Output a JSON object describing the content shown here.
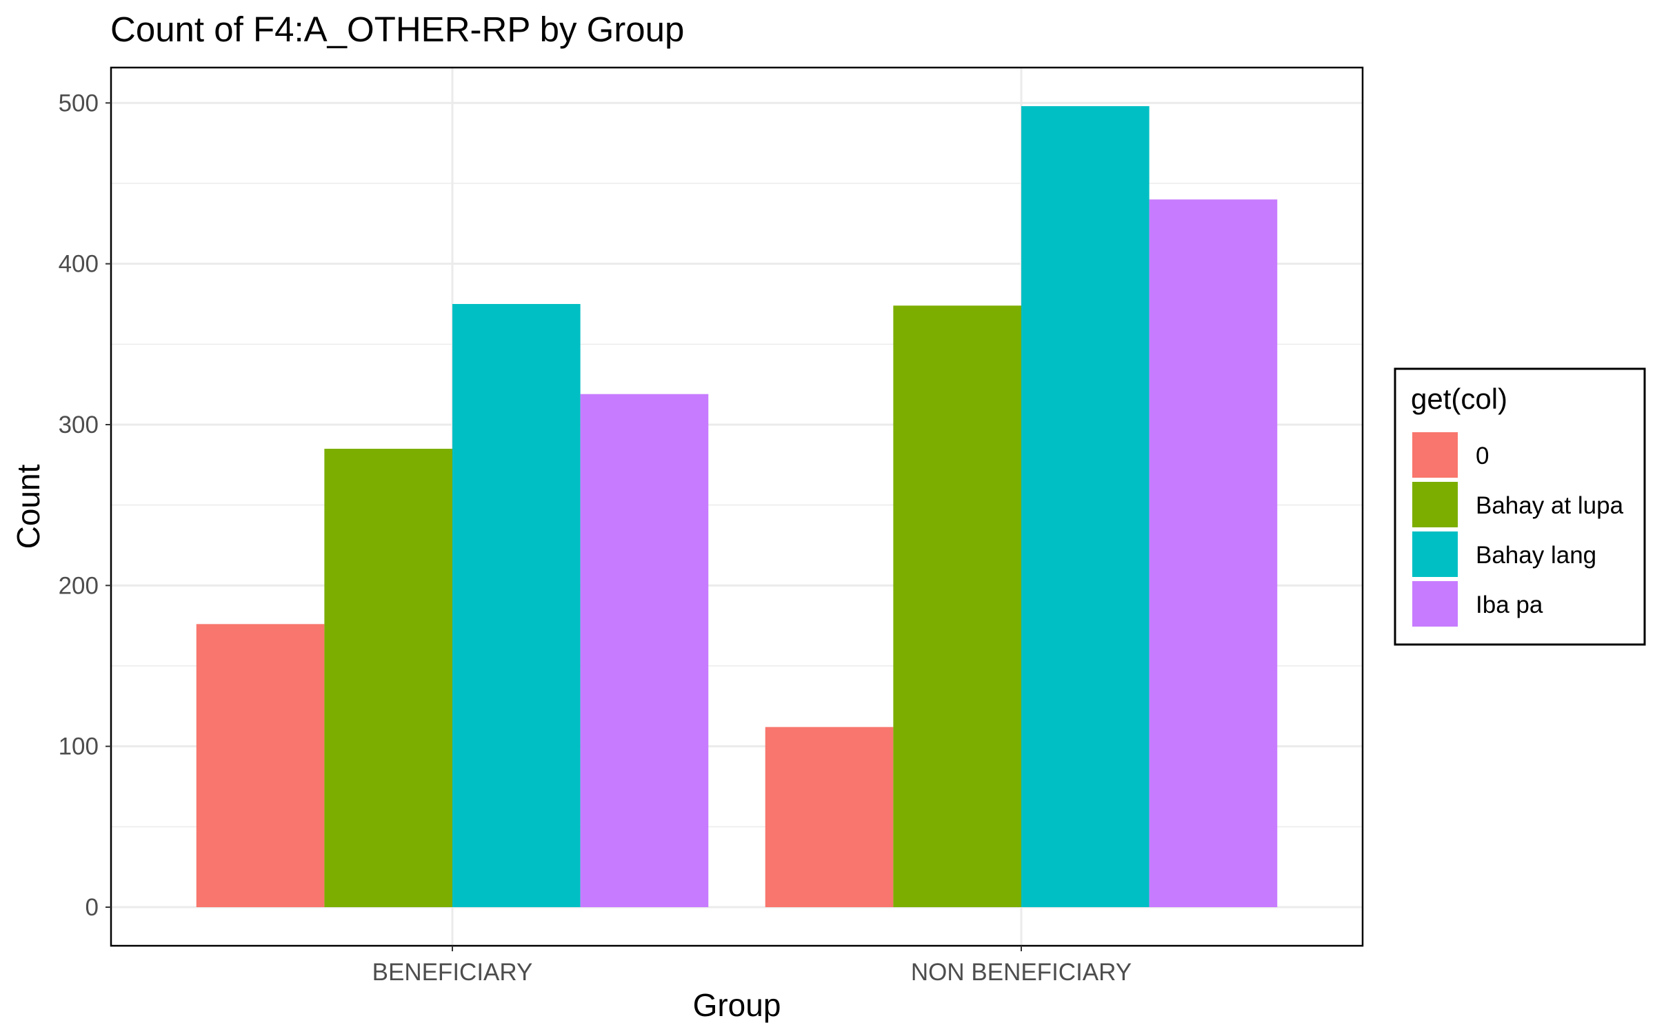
{
  "chart_data": {
    "type": "bar",
    "title": "Count of F4:A_OTHER-RP by Group",
    "xlabel": "Group",
    "ylabel": "Count",
    "categories": [
      "BENEFICIARY",
      "NON BENEFICIARY"
    ],
    "series": [
      {
        "name": "0",
        "color": "#F8766D",
        "values": [
          176,
          112
        ]
      },
      {
        "name": "Bahay at lupa",
        "color": "#7CAE00",
        "values": [
          285,
          374
        ]
      },
      {
        "name": "Bahay lang",
        "color": "#00BFC4",
        "values": [
          375,
          498
        ]
      },
      {
        "name": "Iba pa",
        "color": "#C77CFF",
        "values": [
          319,
          440
        ]
      }
    ],
    "ylim": [
      -24,
      522
    ],
    "yticks": [
      0,
      100,
      200,
      300,
      400,
      500
    ],
    "ytick_labels": [
      "0",
      "100",
      "200",
      "300",
      "400",
      "500"
    ],
    "grid": true,
    "legend": {
      "title": "get(col)",
      "position": "right"
    }
  }
}
